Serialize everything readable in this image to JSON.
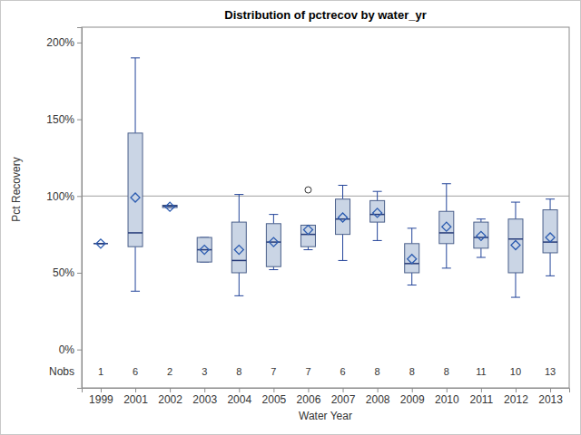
{
  "chart_data": {
    "type": "box",
    "title": "Distribution of pctrecov by water_yr",
    "x_label": "Water Year",
    "y_label": "Pct Recovery",
    "categories": [
      "1999",
      "2001",
      "2002",
      "2003",
      "2004",
      "2005",
      "2006",
      "2007",
      "2008",
      "2009",
      "2010",
      "2011",
      "2012",
      "2013"
    ],
    "whisker_low": [
      69,
      38,
      92.5,
      57,
      35,
      52,
      65,
      58,
      71,
      42,
      53,
      60,
      34,
      48
    ],
    "q1": [
      69,
      67,
      92.5,
      57,
      50,
      54,
      67,
      75,
      83,
      50,
      69,
      66,
      50,
      63
    ],
    "median": [
      69,
      76,
      93.5,
      65,
      58,
      70,
      75,
      85,
      88,
      56,
      76,
      73,
      72,
      70
    ],
    "q3": [
      69,
      141,
      94,
      73,
      83,
      82,
      81,
      98,
      97,
      69,
      90,
      83,
      85,
      91
    ],
    "whisker_high": [
      69,
      190,
      94,
      73,
      101,
      88,
      81,
      107,
      103,
      79,
      108,
      85,
      96,
      98
    ],
    "mean": [
      69,
      99,
      93,
      65,
      65,
      70,
      78,
      86,
      89,
      59,
      80,
      74,
      68,
      73
    ],
    "outliers": [
      [],
      [],
      [],
      [],
      [],
      [],
      [
        104
      ],
      [],
      [],
      [],
      [],
      [],
      [],
      []
    ],
    "n_label": "Nobs",
    "n": [
      1,
      6,
      2,
      3,
      8,
      7,
      7,
      6,
      8,
      8,
      8,
      11,
      10,
      13
    ],
    "reference_line": 100,
    "color": "#cad5e5",
    "ylim": [
      -25,
      210
    ],
    "yticks": [
      {
        "value": 0,
        "label": "0%"
      },
      {
        "value": 50,
        "label": "50%"
      },
      {
        "value": 100,
        "label": "100%"
      },
      {
        "value": 150,
        "label": "150%"
      },
      {
        "value": 200,
        "label": "200%"
      }
    ],
    "grid": false
  }
}
